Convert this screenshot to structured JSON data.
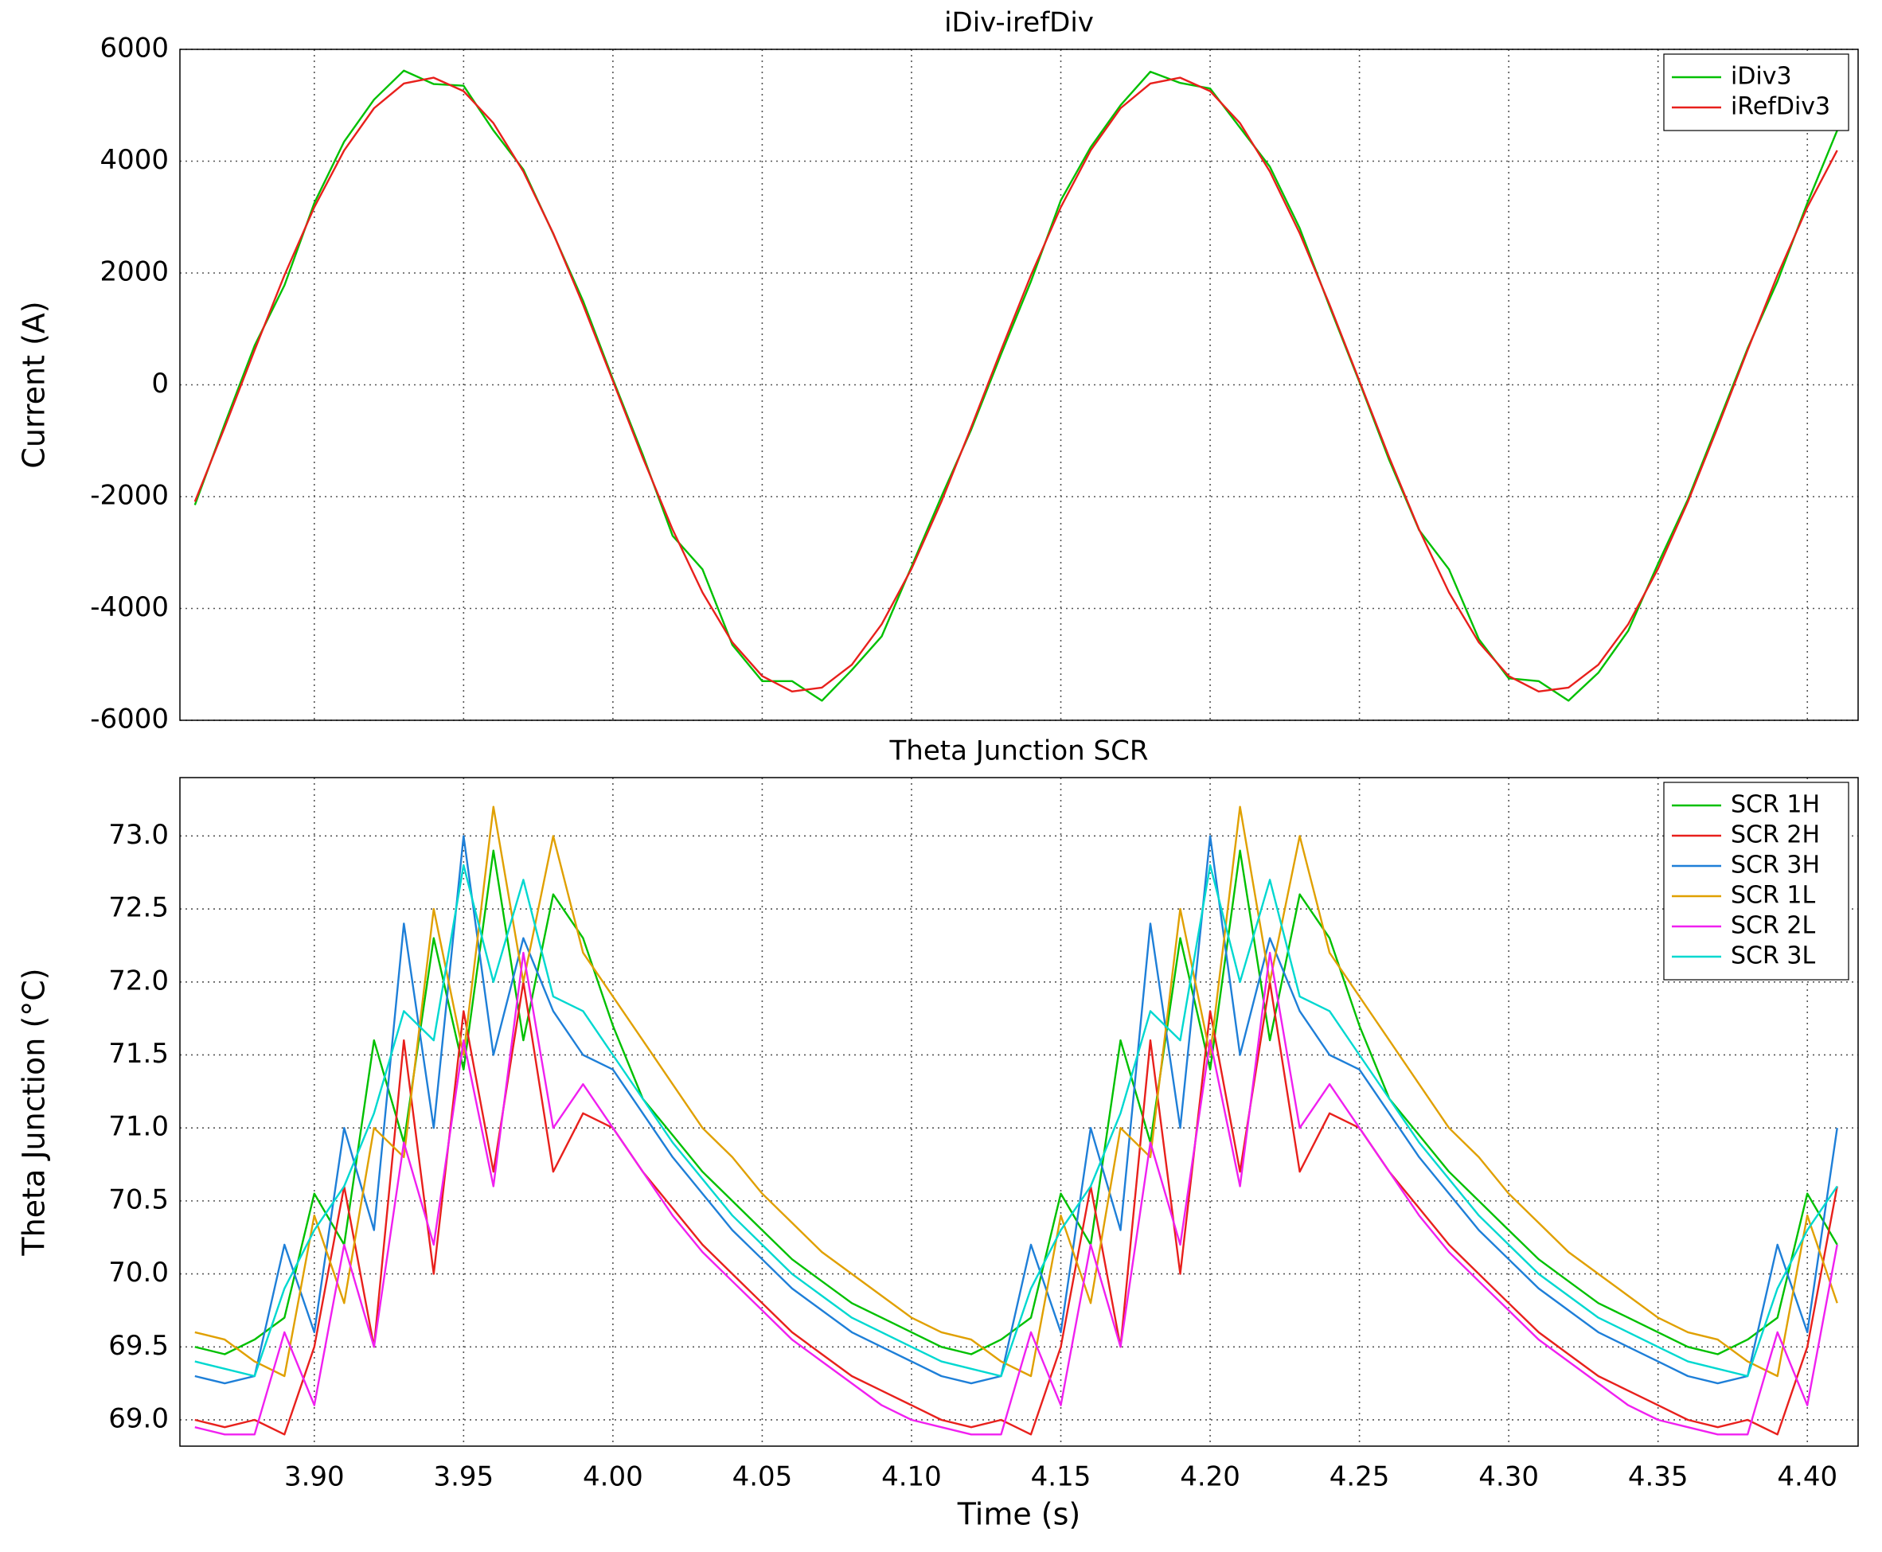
{
  "chart_data": [
    {
      "type": "line",
      "title": "iDiv-irefDiv",
      "ylabel": "Current (A)",
      "x": [
        3.86,
        3.87,
        3.88,
        3.89,
        3.9,
        3.91,
        3.92,
        3.93,
        3.94,
        3.95,
        3.96,
        3.97,
        3.98,
        3.99,
        4.0,
        4.01,
        4.02,
        4.03,
        4.04,
        4.05,
        4.06,
        4.07,
        4.08,
        4.09,
        4.1,
        4.11,
        4.12,
        4.13,
        4.14,
        4.15,
        4.16,
        4.17,
        4.18,
        4.19,
        4.2,
        4.21,
        4.22,
        4.23,
        4.24,
        4.25,
        4.26,
        4.27,
        4.28,
        4.29,
        4.3,
        4.31,
        4.32,
        4.33,
        4.34,
        4.35,
        4.36,
        4.37,
        4.38,
        4.39,
        4.4,
        4.41
      ],
      "xlim": [
        3.855,
        4.417
      ],
      "xticks": [
        3.9,
        3.95,
        4.0,
        4.05,
        4.1,
        4.15,
        4.2,
        4.25,
        4.3,
        4.35,
        4.4
      ],
      "ylim": [
        -6000,
        6000
      ],
      "yticks": [
        -6000,
        -4000,
        -2000,
        0,
        2000,
        4000,
        6000
      ],
      "grid": true,
      "legend": "upper right",
      "series": [
        {
          "name": "iDiv3",
          "color": "#00c000",
          "values": [
            -2150,
            -700,
            700,
            1780,
            3250,
            4350,
            5100,
            5620,
            5380,
            5350,
            4550,
            3850,
            2700,
            1500,
            100,
            -1250,
            -2700,
            -3300,
            -4650,
            -5300,
            -5300,
            -5650,
            -5100,
            -4500,
            -3250,
            -2000,
            -800,
            550,
            1850,
            3300,
            4250,
            5000,
            5600,
            5400,
            5300,
            4600,
            3900,
            2800,
            1400,
            50,
            -1350,
            -2600,
            -3300,
            -4550,
            -5250,
            -5300,
            -5650,
            -5150,
            -4400,
            -3200,
            -2050,
            -700,
            650,
            1850,
            3250,
            4550
          ]
        },
        {
          "name": "iRefDiv3",
          "color": "#e8201c",
          "values": [
            -2089,
            -758,
            621,
            1960,
            3177,
            4194,
            4947,
            5389,
            5493,
            5252,
            4681,
            3815,
            2710,
            1434,
            69,
            -1301,
            -2589,
            -3714,
            -4606,
            -5209,
            -5484,
            -5415,
            -5006,
            -4282,
            -3288,
            -2089,
            -758,
            621,
            1960,
            3177,
            4194,
            4947,
            5389,
            5493,
            5252,
            4681,
            3815,
            2710,
            1434,
            69,
            -1301,
            -2589,
            -3714,
            -4606,
            -5209,
            -5484,
            -5415,
            -5006,
            -4282,
            -3288,
            -2089,
            -758,
            621,
            1960,
            3177,
            4194
          ]
        }
      ]
    },
    {
      "type": "line",
      "title": "Theta Junction SCR",
      "ylabel": "Theta Junction (°C)",
      "xlabel": "Time (s)",
      "x": [
        3.86,
        3.87,
        3.88,
        3.89,
        3.9,
        3.91,
        3.92,
        3.93,
        3.94,
        3.95,
        3.96,
        3.97,
        3.98,
        3.99,
        4.0,
        4.01,
        4.02,
        4.03,
        4.04,
        4.05,
        4.06,
        4.07,
        4.08,
        4.09,
        4.1,
        4.11,
        4.12,
        4.13,
        4.14,
        4.15,
        4.16,
        4.17,
        4.18,
        4.19,
        4.2,
        4.21,
        4.22,
        4.23,
        4.24,
        4.25,
        4.26,
        4.27,
        4.28,
        4.29,
        4.3,
        4.31,
        4.32,
        4.33,
        4.34,
        4.35,
        4.36,
        4.37,
        4.38,
        4.39,
        4.4,
        4.41
      ],
      "xlim": [
        3.855,
        4.417
      ],
      "xticks": [
        {
          "value": 3.9,
          "label": "3.90"
        },
        {
          "value": 3.95,
          "label": "3.95"
        },
        {
          "value": 4.0,
          "label": "4.00"
        },
        {
          "value": 4.05,
          "label": "4.05"
        },
        {
          "value": 4.1,
          "label": "4.10"
        },
        {
          "value": 4.15,
          "label": "4.15"
        },
        {
          "value": 4.2,
          "label": "4.20"
        },
        {
          "value": 4.25,
          "label": "4.25"
        },
        {
          "value": 4.3,
          "label": "4.30"
        },
        {
          "value": 4.35,
          "label": "4.35"
        },
        {
          "value": 4.4,
          "label": "4.40"
        }
      ],
      "ylim": [
        68.82,
        73.4
      ],
      "yticks": [
        {
          "value": 69,
          "label": "69.0"
        },
        69.5,
        {
          "value": 70,
          "label": "70.0"
        },
        70.5,
        {
          "value": 71,
          "label": "71.0"
        },
        71.5,
        {
          "value": 72,
          "label": "72.0"
        },
        72.5,
        {
          "value": 73,
          "label": "73.0"
        }
      ],
      "grid": true,
      "legend": "upper right",
      "series": [
        {
          "name": "SCR 1H",
          "color": "#00c000",
          "values": [
            69.5,
            69.45,
            69.55,
            69.7,
            70.55,
            70.2,
            71.6,
            70.9,
            72.3,
            71.4,
            72.9,
            71.6,
            72.6,
            72.3,
            71.7,
            71.2,
            70.95,
            70.7,
            70.5,
            70.3,
            70.1,
            69.95,
            69.8,
            69.7,
            69.6,
            69.5,
            69.45,
            69.55,
            69.7,
            70.55,
            70.2,
            71.6,
            70.9,
            72.3,
            71.4,
            72.9,
            71.6,
            72.6,
            72.3,
            71.7,
            71.2,
            70.95,
            70.7,
            70.5,
            70.3,
            70.1,
            69.95,
            69.8,
            69.7,
            69.6,
            69.5,
            69.45,
            69.55,
            69.7,
            70.55,
            70.2
          ]
        },
        {
          "name": "SCR 2H",
          "color": "#e8201c",
          "values": [
            69.0,
            68.95,
            69.0,
            68.9,
            69.5,
            70.6,
            69.5,
            71.6,
            70.0,
            71.8,
            70.7,
            72.0,
            70.7,
            71.1,
            71.0,
            70.7,
            70.45,
            70.2,
            70.0,
            69.8,
            69.6,
            69.45,
            69.3,
            69.2,
            69.1,
            69.0,
            68.95,
            69.0,
            68.9,
            69.5,
            70.6,
            69.5,
            71.6,
            70.0,
            71.8,
            70.7,
            72.0,
            70.7,
            71.1,
            71.0,
            70.7,
            70.45,
            70.2,
            70.0,
            69.8,
            69.6,
            69.45,
            69.3,
            69.2,
            69.1,
            69.0,
            68.95,
            69.0,
            68.9,
            69.5,
            70.6
          ]
        },
        {
          "name": "SCR 3H",
          "color": "#1e7fd8",
          "values": [
            69.3,
            69.25,
            69.3,
            70.2,
            69.6,
            71.0,
            70.3,
            72.4,
            71.0,
            73.0,
            71.5,
            72.3,
            71.8,
            71.5,
            71.4,
            71.1,
            70.8,
            70.55,
            70.3,
            70.1,
            69.9,
            69.75,
            69.6,
            69.5,
            69.4,
            69.3,
            69.25,
            69.3,
            70.2,
            69.6,
            71.0,
            70.3,
            72.4,
            71.0,
            73.0,
            71.5,
            72.3,
            71.8,
            71.5,
            71.4,
            71.1,
            70.8,
            70.55,
            70.3,
            70.1,
            69.9,
            69.75,
            69.6,
            69.5,
            69.4,
            69.3,
            69.25,
            69.3,
            70.2,
            69.6,
            71.0
          ]
        },
        {
          "name": "SCR 1L",
          "color": "#e0a000",
          "values": [
            69.6,
            69.55,
            69.4,
            69.3,
            70.4,
            69.8,
            71.0,
            70.8,
            72.5,
            71.5,
            73.2,
            72.0,
            73.0,
            72.2,
            71.9,
            71.6,
            71.3,
            71.0,
            70.8,
            70.55,
            70.35,
            70.15,
            70.0,
            69.85,
            69.7,
            69.6,
            69.55,
            69.4,
            69.3,
            70.4,
            69.8,
            71.0,
            70.8,
            72.5,
            71.5,
            73.2,
            72.0,
            73.0,
            72.2,
            71.9,
            71.6,
            71.3,
            71.0,
            70.8,
            70.55,
            70.35,
            70.15,
            70.0,
            69.85,
            69.7,
            69.6,
            69.55,
            69.4,
            69.3,
            70.4,
            69.8
          ]
        },
        {
          "name": "SCR 2L",
          "color": "#f020f0",
          "values": [
            68.95,
            68.9,
            68.9,
            69.6,
            69.1,
            70.2,
            69.5,
            70.9,
            70.2,
            71.6,
            70.6,
            72.2,
            71.0,
            71.3,
            71.0,
            70.7,
            70.4,
            70.15,
            69.95,
            69.75,
            69.55,
            69.4,
            69.25,
            69.1,
            69.0,
            68.95,
            68.9,
            68.9,
            69.6,
            69.1,
            70.2,
            69.5,
            70.9,
            70.2,
            71.6,
            70.6,
            72.2,
            71.0,
            71.3,
            71.0,
            70.7,
            70.4,
            70.15,
            69.95,
            69.75,
            69.55,
            69.4,
            69.25,
            69.1,
            69.0,
            68.95,
            68.9,
            68.9,
            69.6,
            69.1,
            70.2
          ]
        },
        {
          "name": "SCR 3L",
          "color": "#00d8d0",
          "values": [
            69.4,
            69.35,
            69.3,
            69.9,
            70.3,
            70.6,
            71.1,
            71.8,
            71.6,
            72.8,
            72.0,
            72.7,
            71.9,
            71.8,
            71.5,
            71.2,
            70.9,
            70.65,
            70.4,
            70.2,
            70.0,
            69.85,
            69.7,
            69.6,
            69.5,
            69.4,
            69.35,
            69.3,
            69.9,
            70.3,
            70.6,
            71.1,
            71.8,
            71.6,
            72.8,
            72.0,
            72.7,
            71.9,
            71.8,
            71.5,
            71.2,
            70.9,
            70.65,
            70.4,
            70.2,
            70.0,
            69.85,
            69.7,
            69.6,
            69.5,
            69.4,
            69.35,
            69.3,
            69.9,
            70.3,
            70.6
          ]
        }
      ]
    }
  ]
}
